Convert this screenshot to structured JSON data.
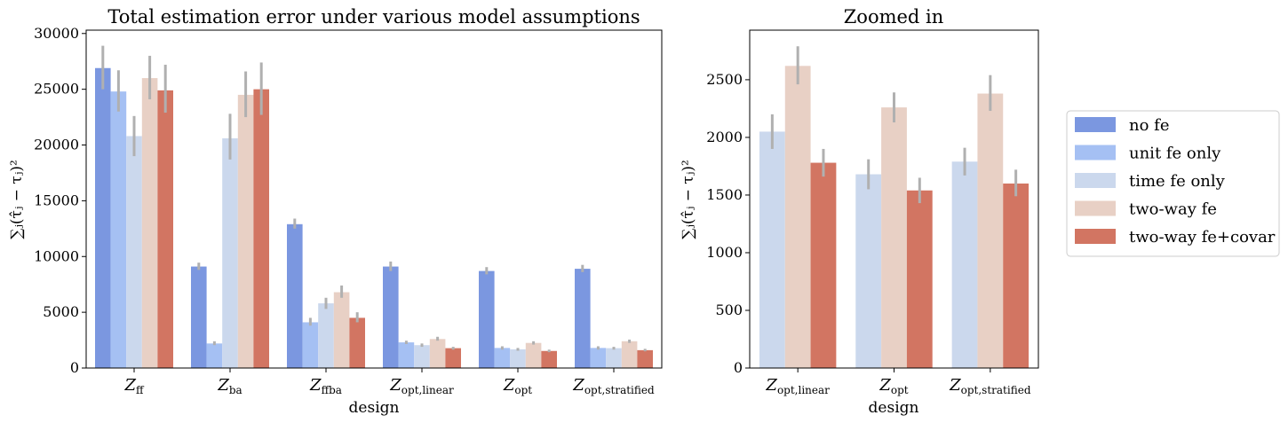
{
  "colors": {
    "no fe": "#7b97e0",
    "unit fe only": "#a5c0f3",
    "time fe only": "#cbd8ed",
    "two-way fe": "#e8d0c5",
    "two-way fe+covar": "#d27562",
    "errorbar": "#b0b0b0"
  },
  "legend": {
    "items": [
      "no fe",
      "unit fe only",
      "time fe only",
      "two-way fe",
      "two-way fe+covar"
    ]
  },
  "chart_data": [
    {
      "type": "bar",
      "title": "Total estimation error under various model assumptions",
      "xlabel": "design",
      "ylabel": "∑ⱼ(τ̂ⱼ − τⱼ)²",
      "categories": [
        "Z_ff",
        "Z_ba",
        "Z_ffba",
        "Z_opt,linear",
        "Z_opt",
        "Z_opt,stratified"
      ],
      "category_labels": [
        {
          "base": "Z",
          "sub": "ff"
        },
        {
          "base": "Z",
          "sub": "ba"
        },
        {
          "base": "Z",
          "sub": "ffba"
        },
        {
          "base": "Z",
          "sub": "opt,linear"
        },
        {
          "base": "Z",
          "sub": "opt"
        },
        {
          "base": "Z",
          "sub": "opt,stratified"
        }
      ],
      "ylim": [
        0,
        30300
      ],
      "yticks": [
        0,
        5000,
        10000,
        15000,
        20000,
        25000,
        30000
      ],
      "series": [
        {
          "name": "no fe",
          "values": [
            26900,
            9100,
            12900,
            9100,
            8700,
            8900
          ],
          "err_low": [
            25000,
            8800,
            12500,
            8700,
            8400,
            8600
          ],
          "err_high": [
            28900,
            9450,
            13400,
            9550,
            9050,
            9250
          ]
        },
        {
          "name": "unit fe only",
          "values": [
            24800,
            2200,
            4100,
            2300,
            1800,
            1800
          ],
          "err_low": [
            23000,
            2050,
            3800,
            2150,
            1650,
            1650
          ],
          "err_high": [
            26700,
            2400,
            4500,
            2450,
            1950,
            1950
          ]
        },
        {
          "name": "time fe only",
          "values": [
            20800,
            20600,
            5800,
            2050,
            1680,
            1780
          ],
          "err_low": [
            19000,
            18700,
            5300,
            1900,
            1550,
            1650
          ],
          "err_high": [
            22600,
            22800,
            6300,
            2200,
            1800,
            1900
          ]
        },
        {
          "name": "two-way fe",
          "values": [
            26000,
            24500,
            6800,
            2600,
            2250,
            2400
          ],
          "err_low": [
            24100,
            22500,
            6300,
            2450,
            2100,
            2250
          ],
          "err_high": [
            28000,
            26600,
            7400,
            2800,
            2400,
            2550
          ]
        },
        {
          "name": "two-way fe+covar",
          "values": [
            24900,
            25000,
            4500,
            1780,
            1530,
            1600
          ],
          "err_low": [
            22900,
            22700,
            4100,
            1650,
            1420,
            1500
          ],
          "err_high": [
            27200,
            27400,
            5000,
            1900,
            1650,
            1720
          ]
        }
      ]
    },
    {
      "type": "bar",
      "title": "Zoomed in",
      "xlabel": "design",
      "ylabel": "∑ⱼ(τ̂ⱼ − τⱼ)²",
      "categories": [
        "Z_opt,linear",
        "Z_opt",
        "Z_opt,stratified"
      ],
      "category_labels": [
        {
          "base": "Z",
          "sub": "opt,linear"
        },
        {
          "base": "Z",
          "sub": "opt"
        },
        {
          "base": "Z",
          "sub": "opt,stratified"
        }
      ],
      "ylim": [
        0,
        2930
      ],
      "yticks": [
        0,
        500,
        1000,
        1500,
        2000,
        2500
      ],
      "series": [
        {
          "name": "time fe only",
          "values": [
            2050,
            1680,
            1790
          ],
          "err_low": [
            1900,
            1550,
            1670
          ],
          "err_high": [
            2200,
            1810,
            1910
          ]
        },
        {
          "name": "two-way fe",
          "values": [
            2620,
            2260,
            2380
          ],
          "err_low": [
            2460,
            2130,
            2230
          ],
          "err_high": [
            2790,
            2390,
            2540
          ]
        },
        {
          "name": "two-way fe+covar",
          "values": [
            1780,
            1540,
            1600
          ],
          "err_low": [
            1660,
            1430,
            1490
          ],
          "err_high": [
            1900,
            1650,
            1720
          ]
        }
      ]
    }
  ]
}
